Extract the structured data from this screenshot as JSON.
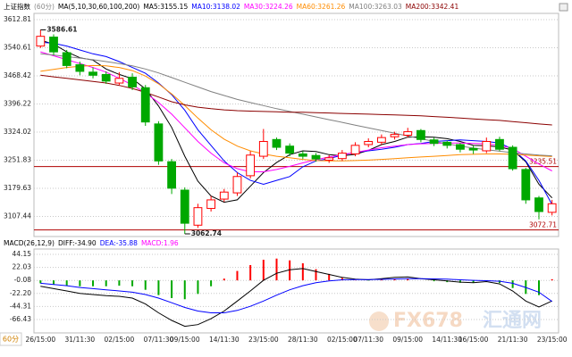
{
  "chart_data": [
    {
      "type": "candlestick",
      "title": "上证指数",
      "subtitle": "(60分)",
      "indicator": "MA(5,10,30,60,100,200)",
      "categories": [
        "26/15:00",
        null,
        null,
        "31/11:30",
        null,
        null,
        "02/15:00",
        null,
        null,
        "07/11:30",
        null,
        "09/15:00",
        null,
        null,
        "14/11:30",
        null,
        null,
        "23/15:00",
        null,
        null,
        "28/11:30",
        null,
        null,
        "02/15:00",
        null,
        "07/11:30",
        null,
        null,
        "09/15:00",
        null,
        null,
        "14/11:30",
        null,
        "16/15:00",
        null,
        null,
        "21/11:30",
        null,
        null,
        "23/15:00"
      ],
      "open": [
        3545,
        3568,
        3528,
        3497,
        3478,
        3472,
        3450,
        3465,
        3438,
        3345,
        3248,
        3175,
        3085,
        3128,
        3152,
        3168,
        3212,
        3262,
        3305,
        3288,
        3268,
        3264,
        3252,
        3256,
        3268,
        3292,
        3298,
        3312,
        3316,
        3328,
        3304,
        3298,
        3292,
        3282,
        3276,
        3305,
        3285,
        3228,
        3155,
        3118
      ],
      "high": [
        3586.61,
        3575,
        3535,
        3505,
        3490,
        3480,
        3478,
        3475,
        3445,
        3352,
        3255,
        3182,
        3140,
        3160,
        3178,
        3220,
        3275,
        3332,
        3310,
        3295,
        3275,
        3270,
        3265,
        3278,
        3298,
        3308,
        3318,
        3325,
        3335,
        3332,
        3310,
        3302,
        3296,
        3290,
        3310,
        3312,
        3290,
        3232,
        3160,
        3150
      ],
      "low": [
        3540,
        3522,
        3488,
        3470,
        3462,
        3448,
        3445,
        3432,
        3340,
        3240,
        3165,
        3062.74,
        3078,
        3120,
        3145,
        3160,
        3205,
        3255,
        3278,
        3262,
        3255,
        3248,
        3245,
        3250,
        3262,
        3285,
        3292,
        3305,
        3310,
        3298,
        3288,
        3282,
        3272,
        3268,
        3270,
        3275,
        3225,
        3140,
        3100,
        3110
      ],
      "close": [
        3570,
        3530,
        3495,
        3480,
        3470,
        3455,
        3462,
        3440,
        3350,
        3250,
        3180,
        3090,
        3130,
        3150,
        3170,
        3210,
        3265,
        3300,
        3285,
        3270,
        3262,
        3255,
        3258,
        3270,
        3290,
        3300,
        3310,
        3318,
        3325,
        3305,
        3295,
        3290,
        3280,
        3278,
        3300,
        3280,
        3230,
        3150,
        3120,
        3140
      ],
      "up_color": "#ff0000",
      "down_color": "#00a800",
      "series": [
        {
          "name": "MA5:3155.15",
          "color": "#000000",
          "values": [
            3560,
            3550,
            3530,
            3515,
            3509,
            3486,
            3472,
            3461,
            3435,
            3391,
            3336,
            3262,
            3198,
            3160,
            3144,
            3150,
            3185,
            3220,
            3246,
            3266,
            3276,
            3274,
            3266,
            3263,
            3267,
            3277,
            3292,
            3300,
            3311,
            3312,
            3311,
            3307,
            3300,
            3290,
            3289,
            3286,
            3278,
            3248,
            3190,
            3155.15
          ]
        },
        {
          "name": "MA10:3138.02",
          "color": "#0000ff",
          "values": [
            3555,
            3552,
            3545,
            3535,
            3525,
            3518,
            3505,
            3490,
            3475,
            3450,
            3420,
            3380,
            3330,
            3290,
            3250,
            3220,
            3200,
            3190,
            3200,
            3210,
            3235,
            3250,
            3256,
            3265,
            3272,
            3276,
            3280,
            3285,
            3292,
            3295,
            3300,
            3302,
            3304,
            3302,
            3300,
            3296,
            3280,
            3250,
            3200,
            3138.02
          ]
        },
        {
          "name": "MA30:3224.26",
          "color": "#ff00ff",
          "values": [
            3530,
            3520,
            3510,
            3500,
            3490,
            3478,
            3462,
            3445,
            3425,
            3400,
            3370,
            3335,
            3300,
            3270,
            3245,
            3230,
            3222,
            3222,
            3228,
            3236,
            3245,
            3253,
            3260,
            3266,
            3272,
            3278,
            3284,
            3288,
            3292,
            3294,
            3295,
            3296,
            3296,
            3295,
            3294,
            3290,
            3282,
            3262,
            3242,
            3224.26
          ]
        },
        {
          "name": "MA60:3261.26",
          "color": "#ff8c00",
          "values": [
            3480,
            3485,
            3490,
            3493,
            3495,
            3494,
            3490,
            3482,
            3468,
            3448,
            3422,
            3392,
            3360,
            3330,
            3306,
            3288,
            3276,
            3268,
            3262,
            3258,
            3254,
            3251,
            3250,
            3250,
            3251,
            3252,
            3254,
            3256,
            3258,
            3260,
            3262,
            3264,
            3266,
            3267,
            3268,
            3268,
            3267,
            3265,
            3263,
            3261.26
          ]
        },
        {
          "name": "MA100:3263.03",
          "color": "#808080",
          "values": [
            3525,
            3522,
            3518,
            3514,
            3510,
            3505,
            3500,
            3494,
            3486,
            3476,
            3464,
            3452,
            3440,
            3428,
            3418,
            3408,
            3400,
            3392,
            3384,
            3377,
            3370,
            3363,
            3356,
            3349,
            3342,
            3335,
            3328,
            3321,
            3314,
            3307,
            3300,
            3294,
            3288,
            3283,
            3279,
            3275,
            3271,
            3268,
            3265,
            3263.03
          ]
        },
        {
          "name": "MA200:3342.41",
          "color": "#8b0000",
          "values": [
            3470,
            3466,
            3462,
            3458,
            3454,
            3450,
            3444,
            3436,
            3426,
            3414,
            3402,
            3394,
            3388,
            3384,
            3381,
            3379,
            3378,
            3377,
            3376,
            3375,
            3375,
            3374,
            3373,
            3372,
            3371,
            3370,
            3369,
            3368,
            3367,
            3366,
            3364,
            3362,
            3360,
            3358,
            3356,
            3354,
            3351,
            3348,
            3345,
            3342.41
          ]
        }
      ],
      "ylim": [
        3055.9,
        3628.85
      ],
      "yticks": [
        3612.81,
        3540.61,
        3468.42,
        3396.22,
        3324.02,
        3251.83,
        3179.63,
        3107.44
      ],
      "hlines": [
        {
          "value": 3235.51,
          "color": "#b00000"
        },
        {
          "value": 3072.71,
          "color": "#b00000"
        }
      ],
      "grid": true
    },
    {
      "type": "macd",
      "title": "MACD(26,12,9)",
      "series": [
        {
          "name": "DIFF:-34.90",
          "color": "#000000",
          "values": [
            -10,
            -14,
            -18,
            -22,
            -24,
            -26,
            -27,
            -30,
            -40,
            -55,
            -68,
            -78,
            -75,
            -65,
            -52,
            -35,
            -18,
            0,
            12,
            18,
            20,
            15,
            10,
            5,
            2,
            1,
            3,
            5,
            6,
            3,
            1,
            -1,
            -3,
            -4,
            -2,
            -6,
            -18,
            -35,
            -45,
            -34.9
          ]
        },
        {
          "name": "DEA:-35.88",
          "color": "#0000ff",
          "values": [
            -5,
            -7,
            -9,
            -12,
            -14,
            -16,
            -18,
            -20,
            -24,
            -30,
            -38,
            -46,
            -52,
            -55,
            -55,
            -51,
            -44,
            -35,
            -25,
            -16,
            -9,
            -4,
            -1,
            1,
            1.5,
            1.5,
            1.8,
            2.3,
            3,
            3,
            2.5,
            2,
            1,
            0,
            -0.5,
            -1.5,
            -5,
            -12,
            -20,
            -35.88
          ]
        },
        {
          "name": "MACD:1.96",
          "color": "#ff00ff",
          "values": [
            -5,
            -7,
            -9,
            -10,
            -10,
            -10,
            -9,
            -10,
            -16,
            -25,
            -30,
            -32,
            -23,
            -10,
            3,
            16,
            26,
            35,
            37,
            34,
            29,
            19,
            11,
            4,
            0.5,
            -0.5,
            1.2,
            2.7,
            3,
            0,
            -1.5,
            -3,
            -4,
            -4,
            -1.5,
            -4.5,
            -13,
            -23,
            -25,
            1.96
          ]
        }
      ],
      "up_color": "#ff0000",
      "down_color": "#00a800",
      "ylim": [
        -89.15,
        53.24
      ],
      "yticks": [
        44.15,
        22.03,
        -0.08,
        {
          "value": -22.2,
          "label": "-22.20"
        },
        -44.31,
        -66.43
      ],
      "grid": true
    }
  ],
  "period_label": "60分",
  "watermark": {
    "brand": "FX678",
    "name": "汇通网"
  }
}
